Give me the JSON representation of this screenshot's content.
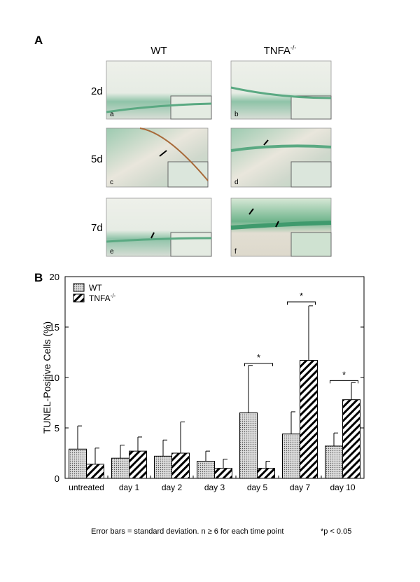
{
  "panel_a": {
    "label": "A",
    "columns": [
      {
        "text": "WT"
      },
      {
        "text": "TNFA",
        "sup": "-/-"
      }
    ],
    "rows": [
      "2d",
      "5d",
      "7d"
    ],
    "images": [
      "a",
      "b",
      "c",
      "d",
      "e",
      "f"
    ]
  },
  "chart_data": {
    "type": "bar",
    "panel_label": "B",
    "y_label": "TUNEL-Positive Cells (%)",
    "categories": [
      "untreated",
      "day 1",
      "day 2",
      "day 3",
      "day 5",
      "day 7",
      "day 10"
    ],
    "series": [
      {
        "name": "WT",
        "pattern": "dots",
        "color": "#000000",
        "values": [
          2.9,
          2.0,
          2.2,
          1.7,
          6.5,
          4.4,
          3.2
        ],
        "errors": [
          2.3,
          1.3,
          1.6,
          1.0,
          4.7,
          2.2,
          1.3
        ]
      },
      {
        "name": "TNFA",
        "name_sup": "-/-",
        "pattern": "stripes",
        "color": "#000000",
        "values": [
          1.4,
          2.7,
          2.5,
          1.0,
          1.0,
          11.7,
          7.8
        ],
        "errors": [
          1.6,
          1.4,
          3.1,
          0.9,
          0.7,
          5.4,
          1.7
        ]
      }
    ],
    "ylim": [
      0,
      20
    ],
    "yticks": [
      0,
      5,
      10,
      15,
      20
    ],
    "legend": "top-left",
    "significance": [
      {
        "category": "day 5",
        "y": 11.4,
        "text": "*"
      },
      {
        "category": "day 7",
        "y": 17.5,
        "text": "*"
      },
      {
        "category": "day 10",
        "y": 9.7,
        "text": "*"
      }
    ],
    "footnotes": [
      "Error bars = standard deviation.  n ≥ 6 for each time point",
      "*p < 0.05"
    ]
  }
}
